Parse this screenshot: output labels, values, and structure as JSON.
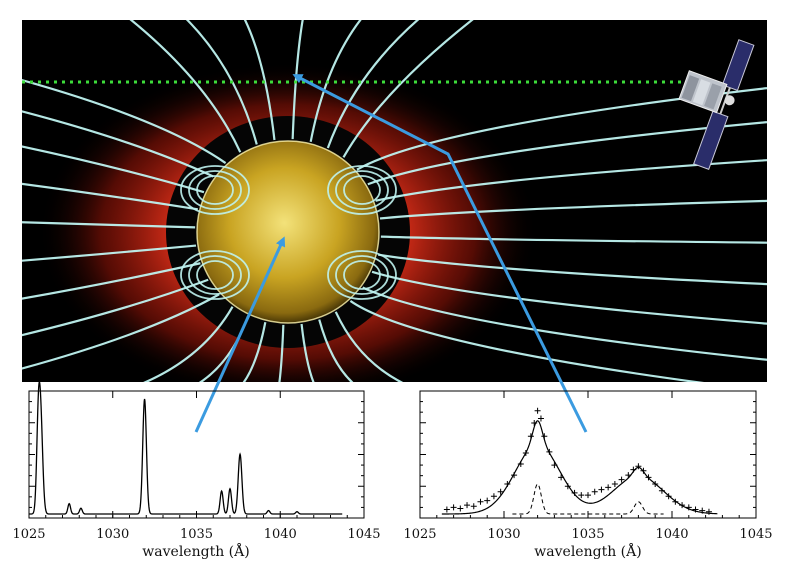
{
  "colors": {
    "space": "#000000",
    "corona_red": "#e0301a",
    "sun_gold": "#c9a422",
    "field_lines": "#bff3f0",
    "arrow_blue": "#3b9be0",
    "los_green": "#3ddc3a",
    "axes": "#000000"
  },
  "icons": {
    "spacecraft": "spacecraft-icon"
  },
  "chart_data": [
    {
      "type": "line",
      "xlabel": "wavelength (Å)",
      "xlim": [
        1025,
        1045
      ],
      "x_ticks": [
        "1025",
        "1030",
        "1035",
        "1040",
        "1045"
      ],
      "series": [
        {
          "peaks": [
            {
              "center": 1025.7,
              "height": 0.8,
              "width": 0.12
            },
            {
              "center": 1025.55,
              "height": 0.65,
              "width": 0.1
            },
            {
              "center": 1027.4,
              "height": 0.09,
              "width": 0.08
            },
            {
              "center": 1028.1,
              "height": 0.05,
              "width": 0.08
            },
            {
              "center": 1031.9,
              "height": 1.0,
              "width": 0.11
            },
            {
              "center": 1036.5,
              "height": 0.2,
              "width": 0.09
            },
            {
              "center": 1037.0,
              "height": 0.22,
              "width": 0.09
            },
            {
              "center": 1037.6,
              "height": 0.52,
              "width": 0.11
            },
            {
              "center": 1039.3,
              "height": 0.03,
              "width": 0.08
            },
            {
              "center": 1041.0,
              "height": 0.02,
              "width": 0.08
            }
          ],
          "x_range": [
            1025,
            1043.7
          ]
        }
      ]
    },
    {
      "type": "scatter",
      "xlabel": "wavelength (Å)",
      "xlim": [
        1025,
        1045
      ],
      "x_ticks": [
        "1025",
        "1030",
        "1035",
        "1040",
        "1045"
      ],
      "series": [
        {
          "style": "solid-fit",
          "peaks": [
            {
              "center": 1032.0,
              "height": 0.62,
              "width": 1.35
            },
            {
              "center": 1032.0,
              "height": 0.22,
              "width": 0.28
            },
            {
              "center": 1038.0,
              "height": 0.34,
              "width": 1.5
            },
            {
              "center": 1038.0,
              "height": 0.08,
              "width": 0.3
            }
          ],
          "x_range": [
            1026.3,
            1042.7
          ]
        },
        {
          "style": "dashed-narrow",
          "peaks": [
            {
              "center": 1032.0,
              "height": 0.27,
              "width": 0.22
            },
            {
              "center": 1038.0,
              "height": 0.11,
              "width": 0.24
            }
          ],
          "x_range": [
            1030.5,
            1039.5
          ]
        },
        {
          "style": "plus-markers",
          "points": [
            [
              1026.6,
              0.04
            ],
            [
              1027.0,
              0.06
            ],
            [
              1027.4,
              0.05
            ],
            [
              1027.8,
              0.08
            ],
            [
              1028.2,
              0.07
            ],
            [
              1028.6,
              0.11
            ],
            [
              1029.0,
              0.12
            ],
            [
              1029.4,
              0.16
            ],
            [
              1029.8,
              0.2
            ],
            [
              1030.2,
              0.27
            ],
            [
              1030.6,
              0.35
            ],
            [
              1031.0,
              0.45
            ],
            [
              1031.3,
              0.55
            ],
            [
              1031.6,
              0.7
            ],
            [
              1031.8,
              0.82
            ],
            [
              1032.0,
              0.93
            ],
            [
              1032.2,
              0.86
            ],
            [
              1032.4,
              0.7
            ],
            [
              1032.7,
              0.56
            ],
            [
              1033.0,
              0.44
            ],
            [
              1033.4,
              0.33
            ],
            [
              1033.8,
              0.25
            ],
            [
              1034.2,
              0.19
            ],
            [
              1034.6,
              0.17
            ],
            [
              1035.0,
              0.17
            ],
            [
              1035.4,
              0.2
            ],
            [
              1035.8,
              0.22
            ],
            [
              1036.2,
              0.24
            ],
            [
              1036.6,
              0.27
            ],
            [
              1037.0,
              0.31
            ],
            [
              1037.4,
              0.35
            ],
            [
              1037.7,
              0.4
            ],
            [
              1038.0,
              0.43
            ],
            [
              1038.3,
              0.39
            ],
            [
              1038.6,
              0.33
            ],
            [
              1039.0,
              0.27
            ],
            [
              1039.4,
              0.21
            ],
            [
              1039.8,
              0.16
            ],
            [
              1040.2,
              0.11
            ],
            [
              1040.6,
              0.08
            ],
            [
              1041.0,
              0.06
            ],
            [
              1041.4,
              0.04
            ],
            [
              1041.8,
              0.03
            ],
            [
              1042.2,
              0.02
            ]
          ]
        }
      ]
    }
  ]
}
